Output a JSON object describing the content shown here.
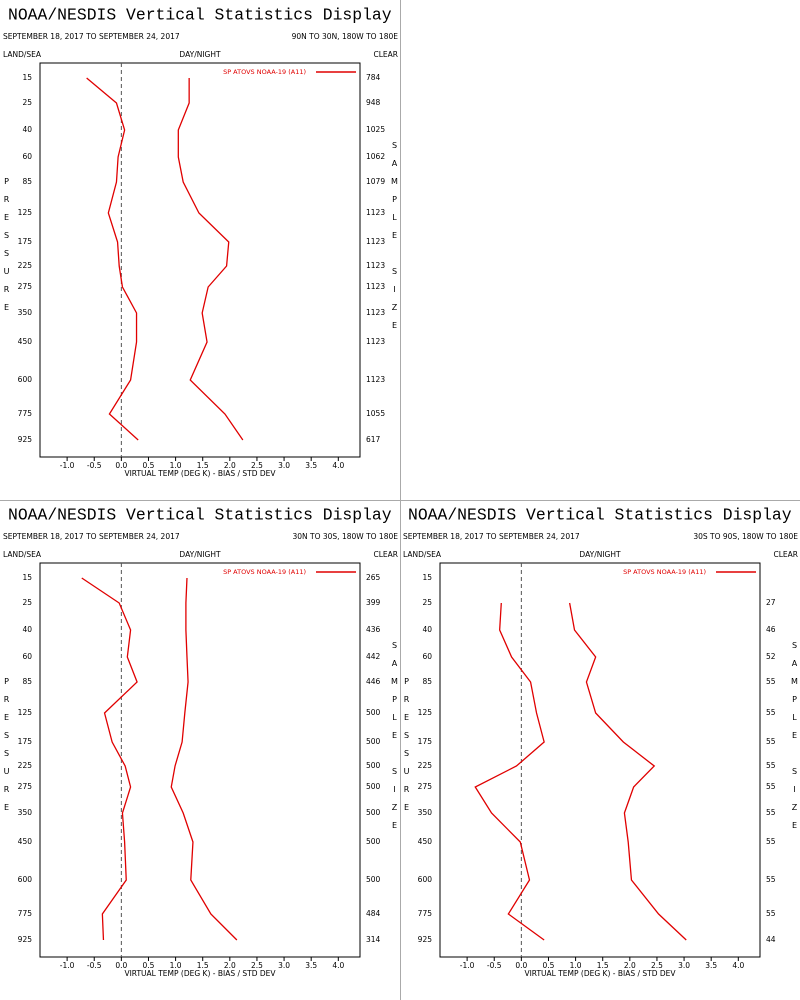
{
  "chart_data": [
    {
      "type": "line",
      "title": "NOAA/NESDIS Vertical Statistics Display",
      "subtitle": "SEPTEMBER 18, 2017 TO SEPTEMBER 24, 2017",
      "region": "90N TO 30N, 180W TO 180E",
      "left_header": "LAND/SEA",
      "center_header": "DAY/NIGHT",
      "right_header": "CLEAR",
      "y_label": "PRESSURE",
      "y2_label": "SAMPLE SIZE",
      "x_label": "VIRTUAL TEMP (DEG K) - BIAS / STD DEV",
      "categories": [
        15,
        25,
        40,
        60,
        85,
        125,
        175,
        225,
        275,
        350,
        450,
        600,
        775,
        925
      ],
      "series": [
        {
          "name": "SP ATOVS NOAA-19 (A11)",
          "color": "#e00000",
          "bias": [
            -0.64,
            -0.09,
            0.06,
            -0.06,
            -0.09,
            -0.24,
            -0.07,
            -0.04,
            0.02,
            0.28,
            0.28,
            0.17,
            -0.22,
            0.31
          ],
          "std_dev": [
            1.25,
            1.25,
            1.05,
            1.05,
            1.14,
            1.43,
            1.98,
            1.94,
            1.6,
            1.49,
            1.58,
            1.27,
            1.91,
            2.24
          ]
        }
      ],
      "sample_size": [
        784,
        948,
        1025,
        1062,
        1079,
        1123,
        1123,
        1123,
        1123,
        1123,
        1123,
        1123,
        1055,
        617
      ],
      "xlim": [
        -1.5,
        4.4
      ],
      "xticks": [
        {
          "value": -1,
          "label": "-1.0"
        },
        {
          "value": -0.5,
          "label": "-0.5"
        },
        {
          "value": 0,
          "label": "0.0"
        },
        {
          "value": 0.5,
          "label": "0.5"
        },
        {
          "value": 1,
          "label": "1.0"
        },
        {
          "value": 1.5,
          "label": "1.5"
        },
        {
          "value": 2,
          "label": "2.0"
        },
        {
          "value": 2.5,
          "label": "2.5"
        },
        {
          "value": 3,
          "label": "3.0"
        },
        {
          "value": 3.5,
          "label": "3.5"
        },
        {
          "value": 4,
          "label": "4.0"
        }
      ]
    },
    {
      "type": "line",
      "title": "NOAA/NESDIS Vertical Statistics Display",
      "subtitle": "SEPTEMBER 18, 2017 TO SEPTEMBER 24, 2017",
      "region": "30N TO 30S, 180W TO 180E",
      "left_header": "LAND/SEA",
      "center_header": "DAY/NIGHT",
      "right_header": "CLEAR",
      "y_label": "PRESSURE",
      "y2_label": "SAMPLE SIZE",
      "x_label": "VIRTUAL TEMP (DEG K) - BIAS / STD DEV",
      "categories": [
        15,
        25,
        40,
        60,
        85,
        125,
        175,
        225,
        275,
        350,
        450,
        600,
        775,
        925
      ],
      "series": [
        {
          "name": "SP ATOVS NOAA-19 (A11)",
          "color": "#e00000",
          "bias": [
            -0.73,
            -0.04,
            0.17,
            0.11,
            0.29,
            -0.31,
            -0.17,
            0.07,
            0.17,
            0.02,
            0.06,
            0.09,
            -0.35,
            -0.33
          ],
          "std_dev": [
            1.21,
            1.19,
            1.19,
            1.21,
            1.23,
            1.17,
            1.12,
            0.99,
            0.92,
            1.14,
            1.32,
            1.28,
            1.65,
            2.13
          ]
        }
      ],
      "sample_size": [
        265,
        399,
        436,
        442,
        446,
        500,
        500,
        500,
        500,
        500,
        500,
        500,
        484,
        314
      ],
      "xlim": [
        -1.5,
        4.4
      ],
      "xticks": [
        {
          "value": -1,
          "label": "-1.0"
        },
        {
          "value": -0.5,
          "label": "-0.5"
        },
        {
          "value": 0,
          "label": "0.0"
        },
        {
          "value": 0.5,
          "label": "0.5"
        },
        {
          "value": 1,
          "label": "1.0"
        },
        {
          "value": 1.5,
          "label": "1.5"
        },
        {
          "value": 2,
          "label": "2.0"
        },
        {
          "value": 2.5,
          "label": "2.5"
        },
        {
          "value": 3,
          "label": "3.0"
        },
        {
          "value": 3.5,
          "label": "3.5"
        },
        {
          "value": 4,
          "label": "4.0"
        }
      ]
    },
    {
      "type": "line",
      "title": "NOAA/NESDIS Vertical Statistics Display",
      "subtitle": "SEPTEMBER 18, 2017 TO SEPTEMBER 24, 2017",
      "region": "30S TO 90S, 180W TO 180E",
      "left_header": "LAND/SEA",
      "center_header": "DAY/NIGHT",
      "right_header": "CLEAR",
      "y_label": "PRESSURE",
      "y2_label": "SAMPLE SIZE",
      "x_label": "VIRTUAL TEMP (DEG K) - BIAS / STD DEV",
      "categories": [
        15,
        25,
        40,
        60,
        85,
        125,
        175,
        225,
        275,
        350,
        450,
        600,
        775,
        925
      ],
      "series": [
        {
          "name": "SP ATOVS NOAA-19 (A11)",
          "color": "#e00000",
          "bias": [
            null,
            -0.37,
            -0.4,
            -0.18,
            0.17,
            0.28,
            0.42,
            -0.09,
            -0.85,
            -0.55,
            -0.02,
            0.15,
            -0.24,
            0.42
          ],
          "std_dev": [
            null,
            0.89,
            0.98,
            1.37,
            1.2,
            1.37,
            1.88,
            2.45,
            2.07,
            1.9,
            1.97,
            2.03,
            2.53,
            3.04
          ]
        }
      ],
      "sample_size": [
        null,
        27,
        46,
        52,
        55,
        55,
        55,
        55,
        55,
        55,
        55,
        55,
        55,
        44
      ],
      "xlim": [
        -1.5,
        4.4
      ],
      "xticks": [
        {
          "value": -1,
          "label": "-1.0"
        },
        {
          "value": -0.5,
          "label": "-0.5"
        },
        {
          "value": 0,
          "label": "0.0"
        },
        {
          "value": 0.5,
          "label": "0.5"
        },
        {
          "value": 1,
          "label": "1.0"
        },
        {
          "value": 1.5,
          "label": "1.5"
        },
        {
          "value": 2,
          "label": "2.0"
        },
        {
          "value": 2.5,
          "label": "2.5"
        },
        {
          "value": 3,
          "label": "3.0"
        },
        {
          "value": 3.5,
          "label": "3.5"
        },
        {
          "value": 4,
          "label": "4.0"
        }
      ]
    }
  ]
}
